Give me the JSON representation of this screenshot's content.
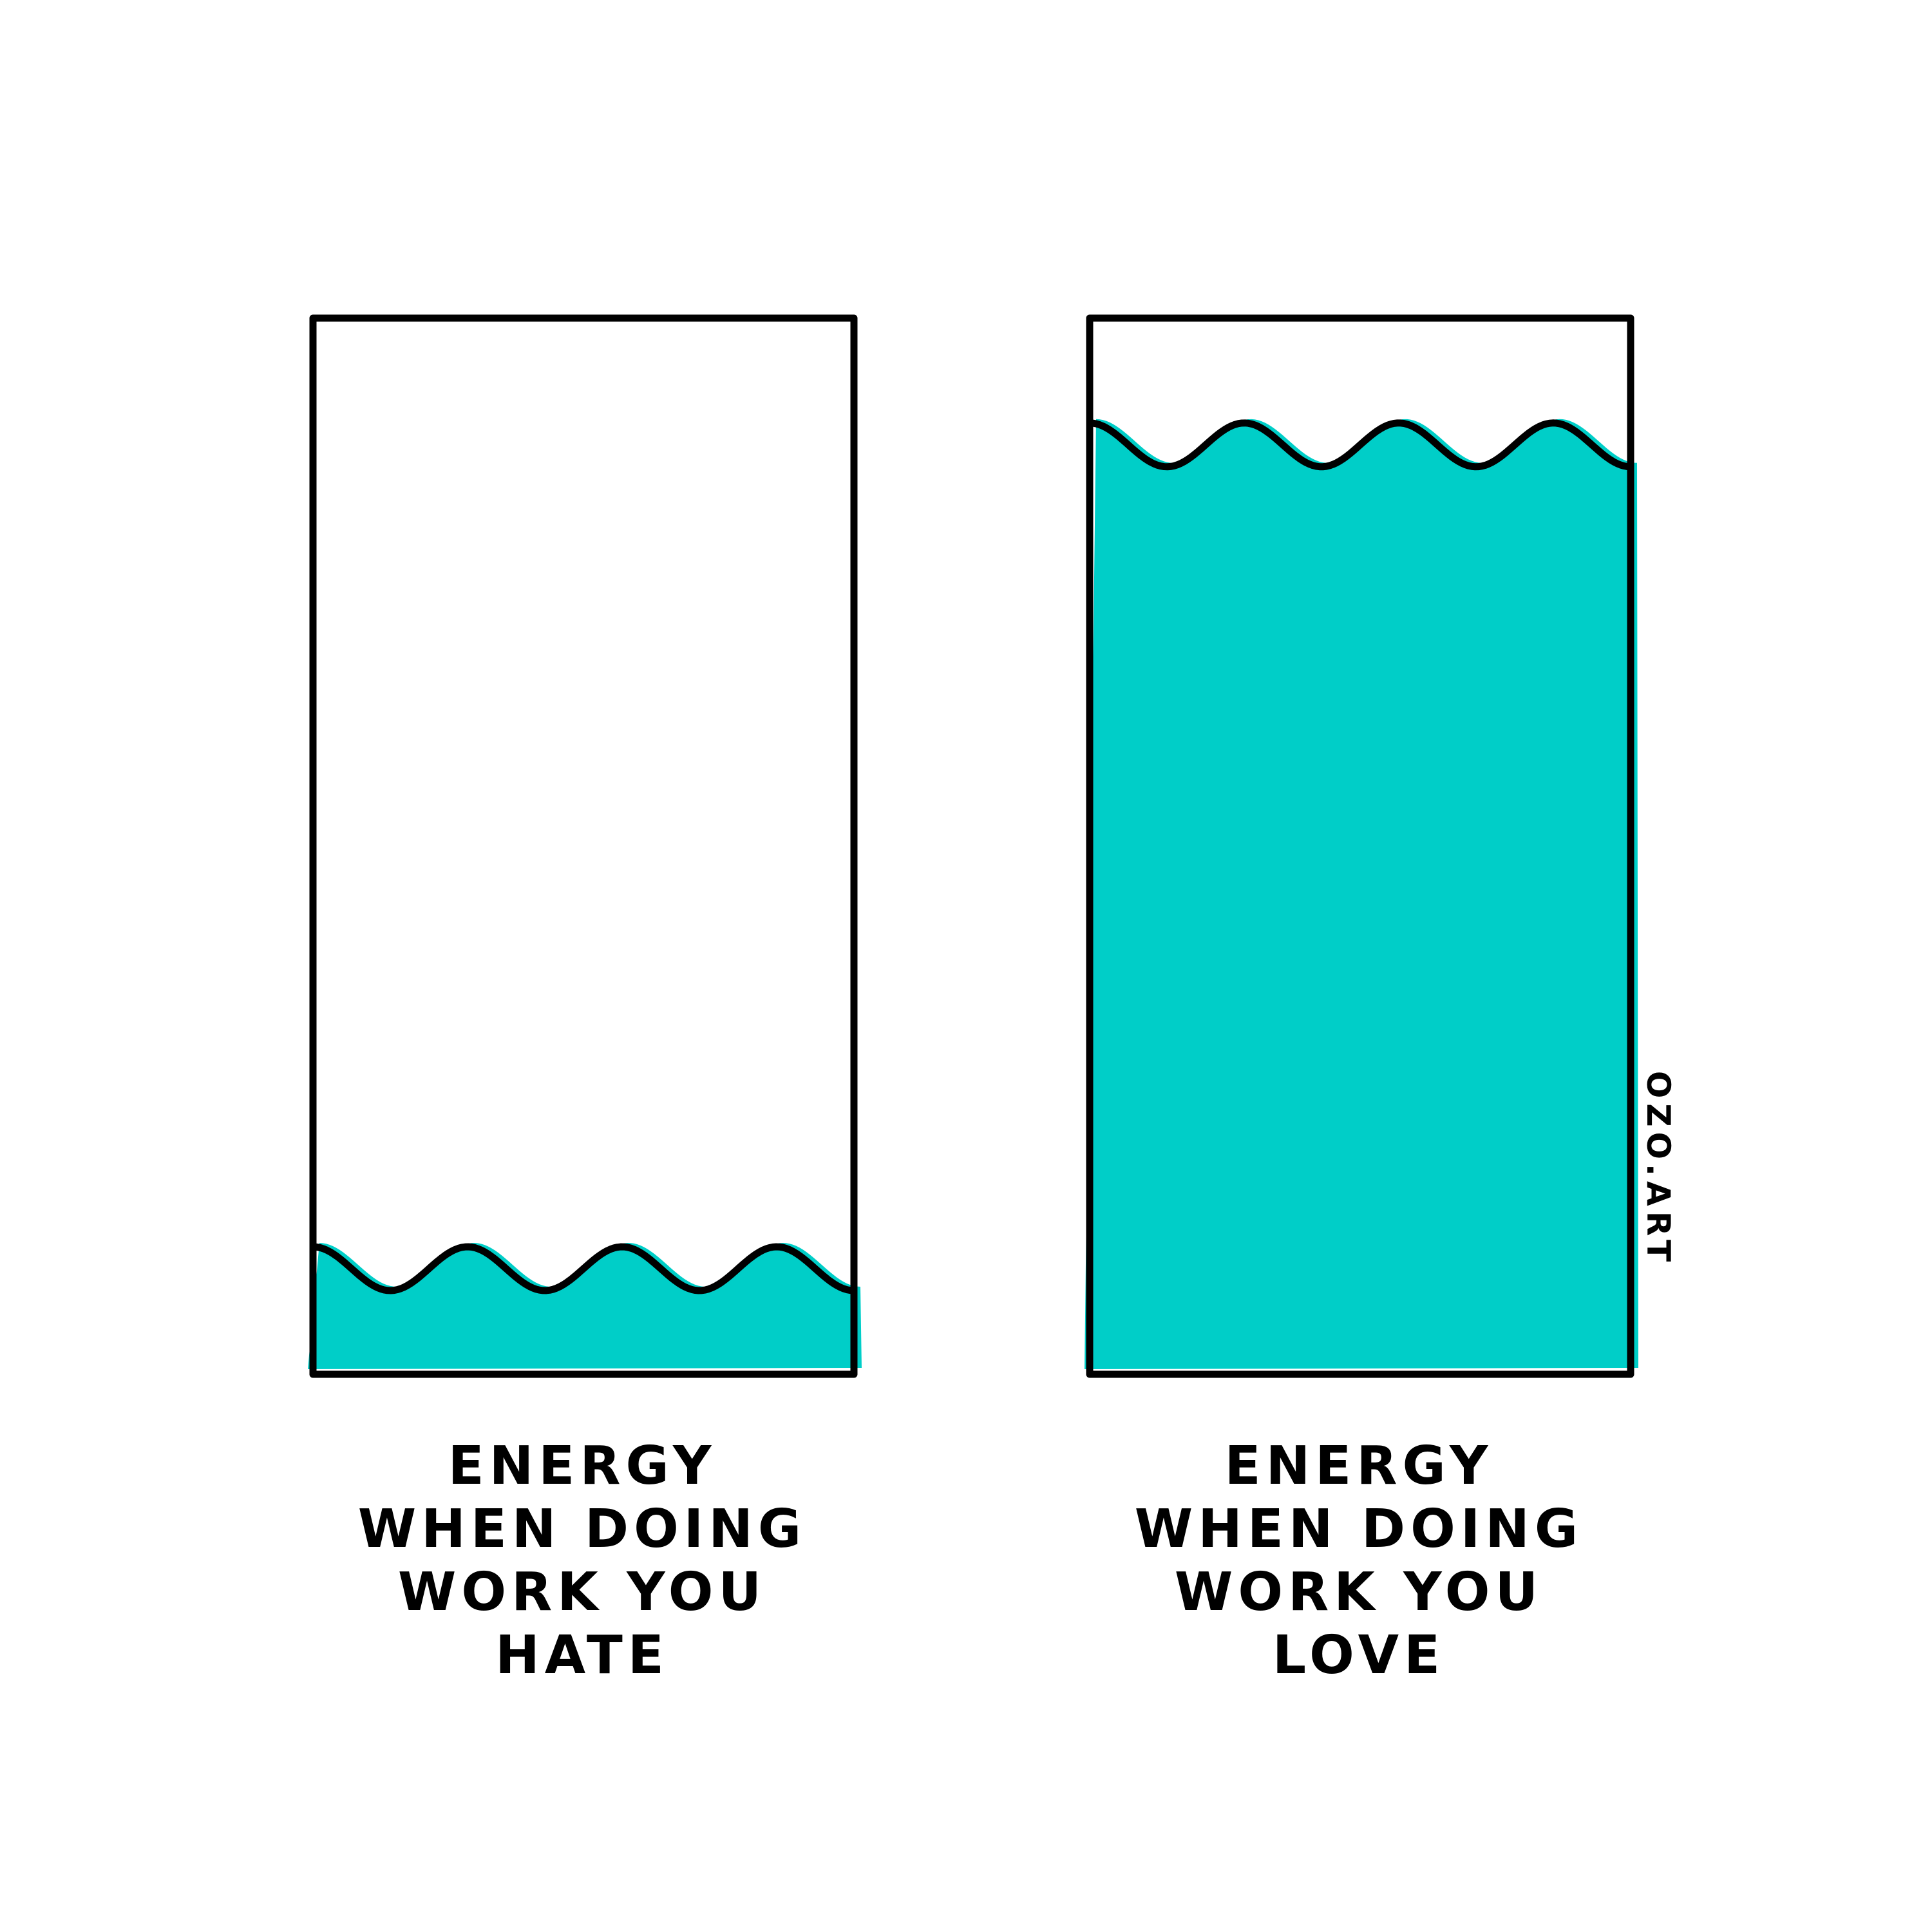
{
  "colors": {
    "background": "#ffffff",
    "energy_fill": "#00cec8",
    "outline": "#000000"
  },
  "panels": [
    {
      "id": "hate",
      "fill_fraction": 0.1,
      "caption_lines": [
        "ENERGY",
        "WHEN DOING",
        "WORK YOU",
        "HATE"
      ]
    },
    {
      "id": "love",
      "fill_fraction": 0.88,
      "caption_lines": [
        "ENERGY",
        "WHEN DOING",
        "WORK YOU",
        "LOVE"
      ]
    }
  ],
  "signature": "OZO.ART"
}
